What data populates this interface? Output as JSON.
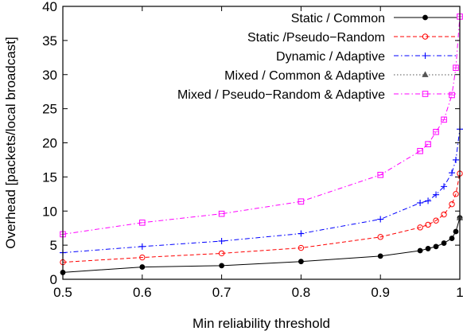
{
  "chart_data": {
    "type": "line",
    "xlabel": "Min reliability threshold",
    "ylabel": "Overhead [packets/local broadcast]",
    "xlim": [
      0.5,
      1.0
    ],
    "ylim": [
      0,
      40
    ],
    "x_ticks": [
      0.5,
      0.6,
      0.7,
      0.8,
      0.9,
      1.0
    ],
    "x_tick_labels": [
      "0.5",
      "0.6",
      "0.7",
      "0.8",
      "0.9",
      "1"
    ],
    "y_ticks": [
      0,
      5,
      10,
      15,
      20,
      25,
      30,
      35,
      40
    ],
    "y_tick_labels": [
      "0",
      "5",
      "10",
      "15",
      "20",
      "25",
      "30",
      "35",
      "40"
    ],
    "grid": false,
    "legend_position": "top-right",
    "series": [
      {
        "name": "Static / Common",
        "color": "#000000",
        "line_style": "solid",
        "marker": "filled-circle",
        "points": [
          [
            0.5,
            1.0
          ],
          [
            0.6,
            1.8
          ],
          [
            0.7,
            2.0
          ],
          [
            0.8,
            2.6
          ],
          [
            0.9,
            3.4
          ],
          [
            0.95,
            4.2
          ],
          [
            0.96,
            4.5
          ],
          [
            0.97,
            4.8
          ],
          [
            0.98,
            5.3
          ],
          [
            0.99,
            6.0
          ],
          [
            0.995,
            7.0
          ],
          [
            1.0,
            9.0
          ]
        ]
      },
      {
        "name": "Static /Pseudo−Random",
        "color": "#ff0000",
        "line_style": "dashed",
        "marker": "open-circle",
        "points": [
          [
            0.5,
            2.5
          ],
          [
            0.6,
            3.2
          ],
          [
            0.7,
            3.8
          ],
          [
            0.8,
            4.6
          ],
          [
            0.9,
            6.2
          ],
          [
            0.95,
            7.6
          ],
          [
            0.96,
            8.0
          ],
          [
            0.97,
            8.6
          ],
          [
            0.98,
            9.5
          ],
          [
            0.99,
            11.0
          ],
          [
            0.995,
            12.5
          ],
          [
            1.0,
            15.5
          ]
        ]
      },
      {
        "name": "Dynamic / Adaptive",
        "color": "#0000ff",
        "line_style": "dash-dot",
        "marker": "plus",
        "points": [
          [
            0.5,
            3.9
          ],
          [
            0.6,
            4.8
          ],
          [
            0.7,
            5.6
          ],
          [
            0.8,
            6.7
          ],
          [
            0.9,
            8.8
          ],
          [
            0.95,
            11.2
          ],
          [
            0.96,
            11.5
          ],
          [
            0.97,
            12.4
          ],
          [
            0.98,
            13.6
          ],
          [
            0.99,
            15.6
          ],
          [
            0.995,
            17.5
          ],
          [
            1.0,
            22.0
          ]
        ]
      },
      {
        "name": "Mixed / Common & Adaptive",
        "color": "#555555",
        "line_style": "dotted",
        "marker": "filled-triangle",
        "points": [
          [
            1.0,
            9.0
          ]
        ]
      },
      {
        "name": "Mixed / Pseudo−Random & Adaptive",
        "color": "#ff00ff",
        "line_style": "dash-dot",
        "marker": "open-square",
        "points": [
          [
            0.5,
            6.6
          ],
          [
            0.6,
            8.3
          ],
          [
            0.7,
            9.6
          ],
          [
            0.8,
            11.4
          ],
          [
            0.9,
            15.3
          ],
          [
            0.95,
            18.8
          ],
          [
            0.96,
            19.8
          ],
          [
            0.97,
            21.6
          ],
          [
            0.98,
            23.4
          ],
          [
            0.99,
            27.0
          ],
          [
            0.995,
            31.0
          ],
          [
            1.0,
            38.5
          ]
        ]
      }
    ]
  }
}
